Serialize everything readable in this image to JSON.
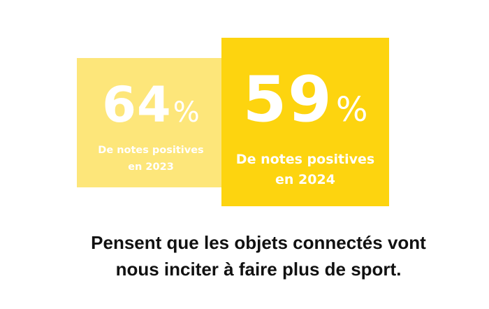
{
  "colors": {
    "card_2023_background": "#fde67a",
    "card_2024_background": "#fdd40f",
    "stat_text": "#ffffff",
    "caption_text": "#111111"
  },
  "stats": [
    {
      "value": "64",
      "unit": "%",
      "label_line1": "De notes positives",
      "label_line2": "en 2023"
    },
    {
      "value": "59",
      "unit": "%",
      "label_line1": "De notes positives",
      "label_line2": "en 2024"
    }
  ],
  "caption": {
    "line1": "Pensent que les objets connectés vont",
    "line2": "nous inciter à faire plus de sport."
  }
}
